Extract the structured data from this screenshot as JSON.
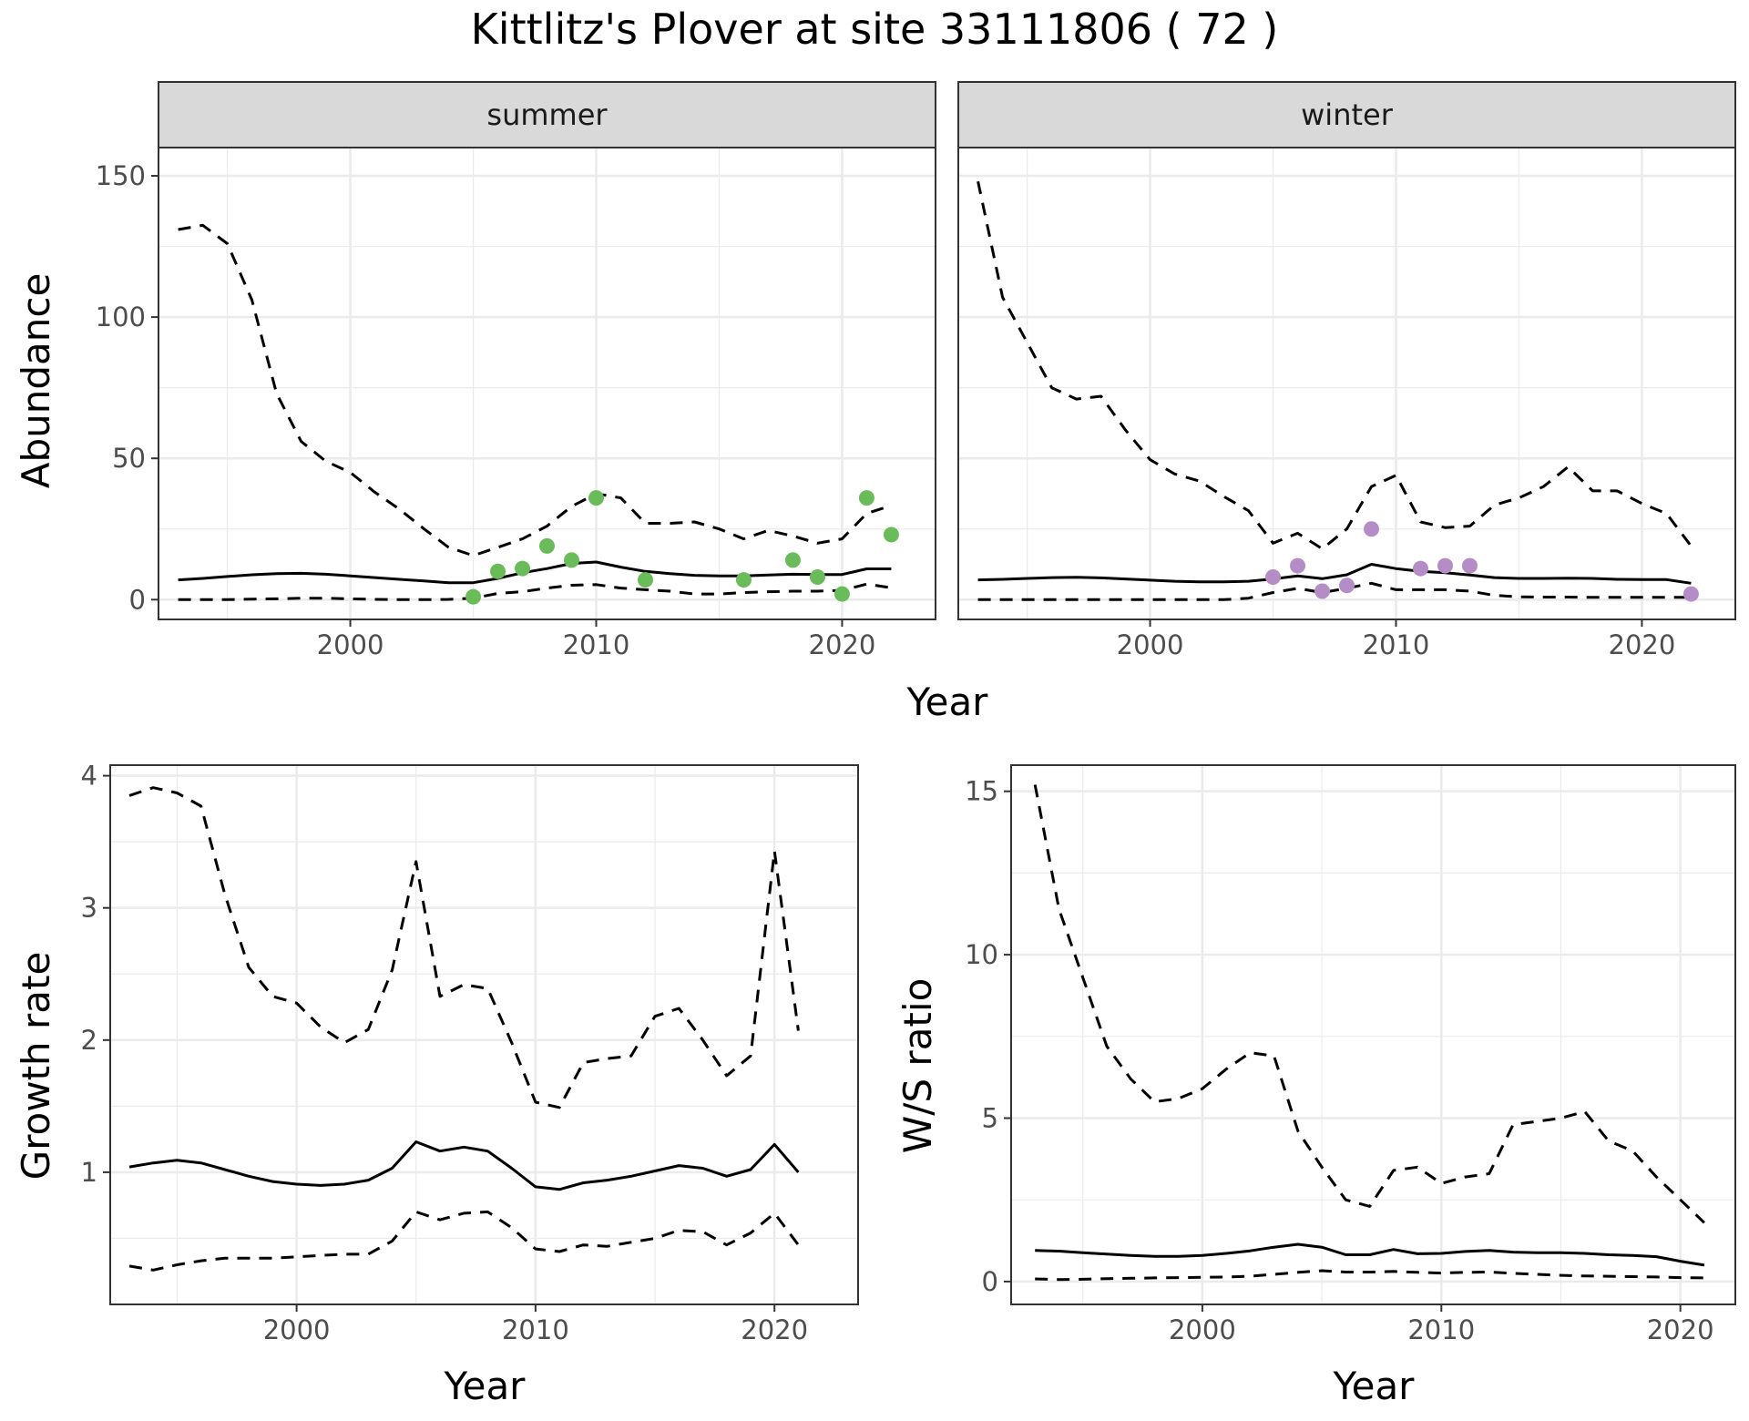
{
  "title": "Kittlitz's Plover at site 33111806 ( 72 )",
  "colors": {
    "summer_points": "#6abb5a",
    "winter_points": "#b48cc6",
    "strip_fill": "#d9d9d9",
    "grid": "#ebebeb"
  },
  "chart_data": [
    {
      "type": "line",
      "panel": "abundance",
      "facets": [
        "summer",
        "winter"
      ],
      "xlabel": "Year",
      "ylabel": "Abundance",
      "xlim": [
        1992.2,
        2023.8
      ],
      "ylim": [
        -7,
        160
      ],
      "x_ticks": [
        2000,
        2010,
        2020
      ],
      "y_ticks": [
        0,
        50,
        100,
        150
      ],
      "grid": true,
      "series_by_facet": {
        "summer": {
          "x": [
            1993,
            1994,
            1995,
            1996,
            1997,
            1998,
            1999,
            2000,
            2001,
            2002,
            2003,
            2004,
            2005,
            2006,
            2007,
            2008,
            2009,
            2010,
            2011,
            2012,
            2013,
            2014,
            2015,
            2016,
            2017,
            2018,
            2019,
            2020,
            2021,
            2022
          ],
          "mean": [
            7,
            7.5,
            8.2,
            8.8,
            9.2,
            9.3,
            9,
            8.4,
            7.8,
            7.2,
            6.6,
            6,
            6,
            7.5,
            9.5,
            11,
            12.8,
            13.3,
            11.5,
            10,
            9.2,
            8.6,
            8.4,
            8.4,
            8.7,
            9,
            8.9,
            8.9,
            10.9,
            10.9
          ],
          "upper": [
            131,
            132.5,
            126,
            106,
            73,
            56,
            49,
            45,
            38,
            32,
            25,
            18.5,
            15.6,
            18.5,
            21.5,
            26,
            33,
            37.5,
            36,
            27,
            27,
            27.5,
            25,
            21.5,
            24.5,
            22.5,
            20,
            21.5,
            30.5,
            33.3
          ],
          "lower": [
            0,
            0,
            0,
            0.2,
            0.3,
            0.5,
            0.5,
            0.3,
            0.1,
            0,
            0,
            0.1,
            0.5,
            2.2,
            2.8,
            4.1,
            5.1,
            5.3,
            4.1,
            3.5,
            3,
            2,
            2,
            2.5,
            2.8,
            3,
            3,
            3.3,
            5.5,
            4.2
          ],
          "points_x": [
            2005,
            2006,
            2007,
            2008,
            2009,
            2010,
            2012,
            2016,
            2018,
            2019,
            2020,
            2021,
            2022
          ],
          "points_y": [
            1,
            10,
            11,
            19,
            14,
            36,
            7,
            7,
            14,
            8,
            2,
            36,
            23
          ]
        },
        "winter": {
          "x": [
            1993,
            1994,
            1995,
            1996,
            1997,
            1998,
            1999,
            2000,
            2001,
            2002,
            2003,
            2004,
            2005,
            2006,
            2007,
            2008,
            2009,
            2010,
            2011,
            2012,
            2013,
            2014,
            2015,
            2016,
            2017,
            2018,
            2019,
            2020,
            2021,
            2022
          ],
          "mean": [
            7,
            7.2,
            7.5,
            7.8,
            7.9,
            7.7,
            7.3,
            6.9,
            6.5,
            6.3,
            6.3,
            6.5,
            7.3,
            8.4,
            7.4,
            8.8,
            12.5,
            11,
            10,
            9.5,
            8.7,
            7.8,
            7.5,
            7.5,
            7.6,
            7.5,
            7.2,
            7.1,
            7.1,
            5.8
          ],
          "upper": [
            148,
            107,
            91,
            75,
            71,
            72,
            60,
            49.5,
            44.5,
            42,
            36.5,
            31.5,
            20,
            23.5,
            18,
            25,
            40,
            44,
            27.5,
            25.5,
            26,
            33.5,
            36,
            40,
            47,
            38.5,
            38.5,
            34,
            30.5,
            19
          ],
          "lower": [
            0,
            0,
            0,
            0,
            0,
            0,
            0,
            0,
            0,
            0,
            0,
            0.5,
            2.5,
            4,
            2.5,
            4,
            5.8,
            3.5,
            3.5,
            3.5,
            3,
            1.5,
            1,
            0.9,
            0.9,
            0.8,
            0.8,
            0.8,
            0.8,
            0.8
          ],
          "points_x": [
            2005,
            2006,
            2007,
            2008,
            2009,
            2011,
            2012,
            2013,
            2022
          ],
          "points_y": [
            8,
            12,
            3,
            5,
            25,
            11,
            12,
            12,
            2
          ]
        }
      }
    },
    {
      "type": "line",
      "panel": "growth",
      "xlabel": "Year",
      "ylabel": "Growth rate",
      "xlim": [
        1992.2,
        2023.5
      ],
      "ylim": [
        0.0,
        4.08
      ],
      "x_ticks": [
        2000,
        2010,
        2020
      ],
      "y_ticks": [
        1,
        2,
        3,
        4
      ],
      "grid": true,
      "x": [
        1993,
        1994,
        1995,
        1996,
        1997,
        1998,
        1999,
        2000,
        2001,
        2002,
        2003,
        2004,
        2005,
        2006,
        2007,
        2008,
        2009,
        2010,
        2011,
        2012,
        2013,
        2014,
        2015,
        2016,
        2017,
        2018,
        2019,
        2020,
        2021
      ],
      "mean": [
        1.04,
        1.07,
        1.09,
        1.07,
        1.02,
        0.97,
        0.93,
        0.91,
        0.9,
        0.91,
        0.94,
        1.03,
        1.23,
        1.16,
        1.19,
        1.16,
        1.03,
        0.89,
        0.87,
        0.92,
        0.94,
        0.97,
        1.01,
        1.05,
        1.03,
        0.97,
        1.02,
        1.21,
        1.0
      ],
      "upper": [
        3.85,
        3.91,
        3.87,
        3.77,
        3.1,
        2.55,
        2.33,
        2.28,
        2.1,
        1.98,
        2.08,
        2.53,
        3.35,
        2.33,
        2.42,
        2.39,
        1.98,
        1.53,
        1.49,
        1.83,
        1.86,
        1.88,
        2.18,
        2.24,
        2.0,
        1.73,
        1.88,
        3.43,
        2.07
      ],
      "lower": [
        0.29,
        0.26,
        0.3,
        0.33,
        0.35,
        0.35,
        0.35,
        0.36,
        0.37,
        0.38,
        0.38,
        0.48,
        0.7,
        0.64,
        0.69,
        0.7,
        0.58,
        0.42,
        0.4,
        0.45,
        0.44,
        0.47,
        0.5,
        0.56,
        0.55,
        0.45,
        0.54,
        0.69,
        0.45
      ]
    },
    {
      "type": "line",
      "panel": "ratio",
      "xlabel": "Year",
      "ylabel": "W/S ratio",
      "xlim": [
        1992.0,
        2022.3
      ],
      "ylim": [
        -0.7,
        15.8
      ],
      "x_ticks": [
        2000,
        2010,
        2020
      ],
      "y_ticks": [
        0,
        5,
        10,
        15
      ],
      "grid": true,
      "x": [
        1993,
        1994,
        1995,
        1996,
        1997,
        1998,
        1999,
        2000,
        2001,
        2002,
        2003,
        2004,
        2005,
        2006,
        2007,
        2008,
        2009,
        2010,
        2011,
        2012,
        2013,
        2014,
        2015,
        2016,
        2017,
        2018,
        2019,
        2020,
        2021
      ],
      "mean": [
        0.95,
        0.93,
        0.88,
        0.84,
        0.8,
        0.77,
        0.77,
        0.8,
        0.86,
        0.94,
        1.05,
        1.14,
        1.05,
        0.82,
        0.82,
        0.98,
        0.85,
        0.86,
        0.92,
        0.95,
        0.9,
        0.88,
        0.88,
        0.86,
        0.82,
        0.8,
        0.76,
        0.62,
        0.5
      ],
      "upper": [
        15.2,
        11.4,
        9.3,
        7.2,
        6.2,
        5.5,
        5.6,
        5.9,
        6.5,
        7.0,
        6.9,
        4.6,
        3.5,
        2.5,
        2.3,
        3.4,
        3.5,
        3.0,
        3.2,
        3.3,
        4.8,
        4.9,
        5.0,
        5.2,
        4.3,
        4.0,
        3.2,
        2.5,
        1.8
      ],
      "lower": [
        0.08,
        0.06,
        0.07,
        0.09,
        0.1,
        0.11,
        0.12,
        0.13,
        0.14,
        0.16,
        0.22,
        0.28,
        0.33,
        0.29,
        0.29,
        0.31,
        0.28,
        0.26,
        0.28,
        0.29,
        0.25,
        0.22,
        0.19,
        0.17,
        0.16,
        0.15,
        0.14,
        0.12,
        0.11
      ]
    }
  ]
}
